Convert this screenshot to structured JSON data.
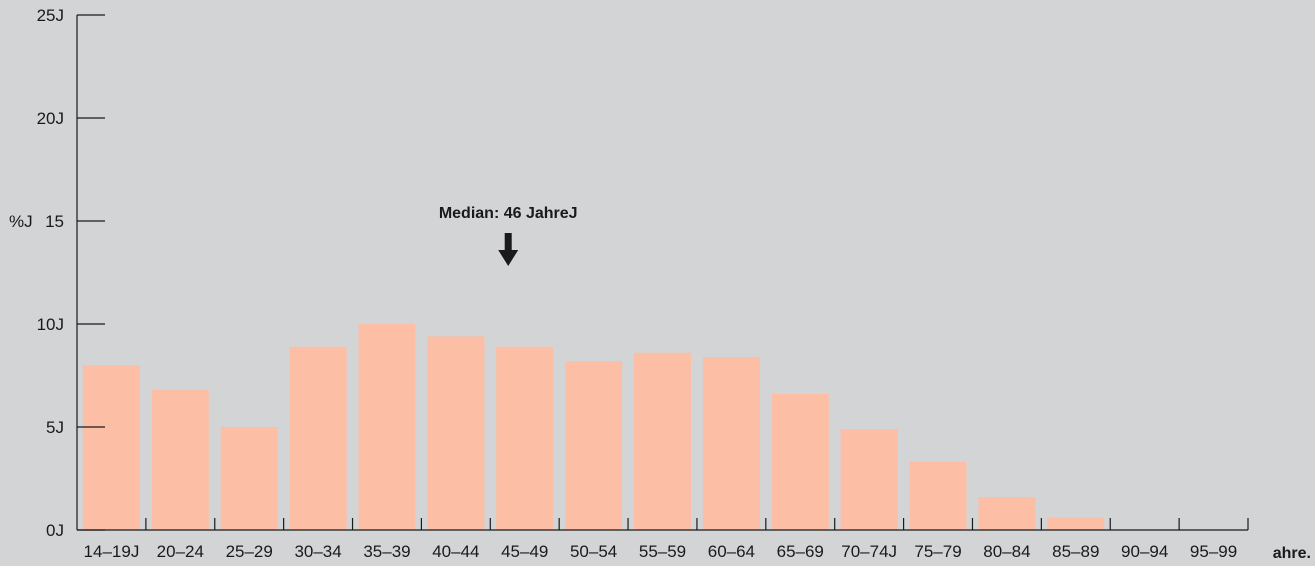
{
  "chart_data": {
    "type": "bar",
    "title": "",
    "ylabel": "%J",
    "xlabel": "ahre.",
    "ylim": [
      0,
      25
    ],
    "yticks": [
      {
        "value": 0,
        "label": "0J"
      },
      {
        "value": 5,
        "label": "5J"
      },
      {
        "value": 10,
        "label": "10J"
      },
      {
        "value": 15,
        "label": "15"
      },
      {
        "value": 20,
        "label": "20J"
      },
      {
        "value": 25,
        "label": "25J"
      }
    ],
    "categories": [
      "14–19J",
      "20–24",
      "25–29",
      "30–34",
      "35–39",
      "40–44",
      "45–49",
      "50–54",
      "55–59",
      "60–64",
      "65–69",
      "70–74J",
      "75–79",
      "80–84",
      "85–89",
      "90–94",
      "95–99"
    ],
    "values": [
      8.0,
      6.8,
      5.0,
      8.9,
      10.0,
      9.4,
      8.9,
      8.2,
      8.6,
      8.4,
      6.6,
      4.9,
      3.3,
      1.6,
      0.6,
      0,
      0
    ],
    "grid": false,
    "colors": {
      "bar": "#fcbfa5",
      "axis": "#1a1a1a",
      "background": "#d3d4d6"
    },
    "annotation": {
      "text": "Median: 46 JahreJ",
      "x_value": 46
    }
  }
}
